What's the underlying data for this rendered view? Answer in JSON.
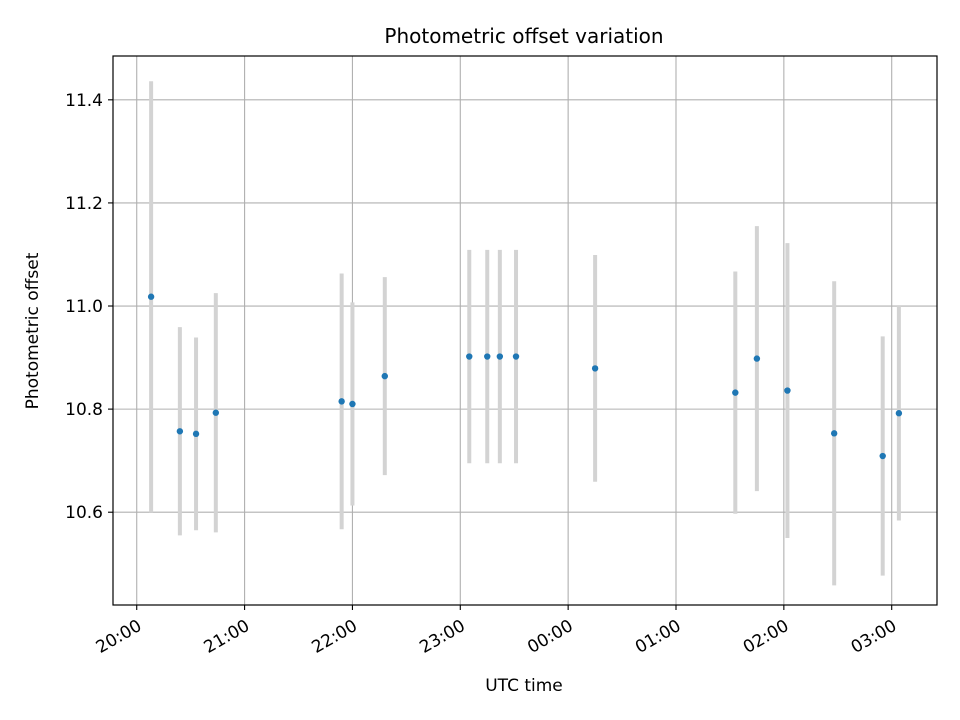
{
  "chart_data": {
    "type": "scatter",
    "title": "Photometric offset variation",
    "xlabel": "UTC time",
    "ylabel": "Photometric offset",
    "grid": true,
    "x_ticks": [
      "20:00",
      "21:00",
      "22:00",
      "23:00",
      "00:00",
      "01:00",
      "02:00",
      "03:00"
    ],
    "y_ticks": [
      "10.6",
      "10.8",
      "11.0",
      "11.2",
      "11.4"
    ],
    "xlim_hours": [
      19.78,
      27.42
    ],
    "ylim": [
      10.42,
      11.485
    ],
    "marker_color": "#1f77b4",
    "errorbar_color": "#d3d3d3",
    "points": [
      {
        "x": "20:08",
        "y": 11.018,
        "yerr": 0.418
      },
      {
        "x": "20:24",
        "y": 10.757,
        "yerr": 0.202
      },
      {
        "x": "20:33",
        "y": 10.752,
        "yerr": 0.187
      },
      {
        "x": "20:44",
        "y": 10.793,
        "yerr": 0.232
      },
      {
        "x": "21:54",
        "y": 10.815,
        "yerr": 0.248
      },
      {
        "x": "22:00",
        "y": 10.81,
        "yerr": 0.197
      },
      {
        "x": "22:18",
        "y": 10.864,
        "yerr": 0.192
      },
      {
        "x": "23:05",
        "y": 10.902,
        "yerr": 0.207
      },
      {
        "x": "23:15",
        "y": 10.902,
        "yerr": 0.207
      },
      {
        "x": "23:22",
        "y": 10.902,
        "yerr": 0.207
      },
      {
        "x": "23:31",
        "y": 10.902,
        "yerr": 0.207
      },
      {
        "x": "00:15",
        "y": 10.879,
        "yerr": 0.22
      },
      {
        "x": "01:33",
        "y": 10.832,
        "yerr": 0.235
      },
      {
        "x": "01:45",
        "y": 10.898,
        "yerr": 0.257
      },
      {
        "x": "02:02",
        "y": 10.836,
        "yerr": 0.286
      },
      {
        "x": "02:28",
        "y": 10.753,
        "yerr": 0.295
      },
      {
        "x": "02:55",
        "y": 10.709,
        "yerr": 0.232
      },
      {
        "x": "03:04",
        "y": 10.792,
        "yerr": 0.208
      }
    ]
  }
}
